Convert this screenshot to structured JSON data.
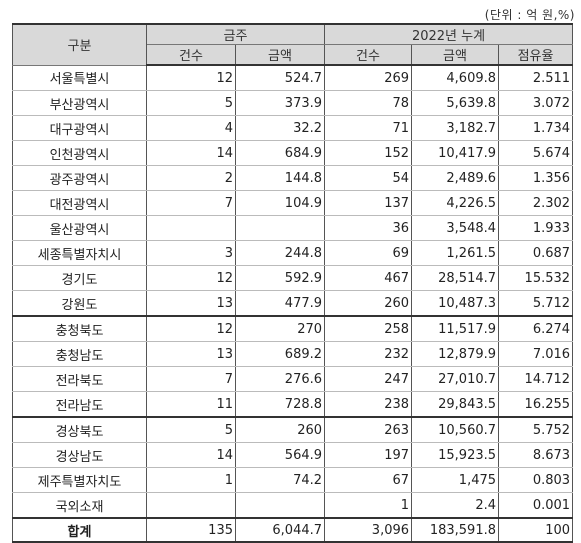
{
  "unit_note": "(단위 : 억 원,%)",
  "header": {
    "category": "구분",
    "group_week": "금주",
    "group_cumulative": "2022년 누계",
    "count": "건수",
    "amount": "금액",
    "share": "점유율"
  },
  "rows": [
    {
      "name": "서울특별시",
      "w_count": "12",
      "w_amount": "524.7",
      "c_count": "269",
      "c_amount": "4,609.8",
      "share": "2.511"
    },
    {
      "name": "부산광역시",
      "w_count": "5",
      "w_amount": "373.9",
      "c_count": "78",
      "c_amount": "5,639.8",
      "share": "3.072"
    },
    {
      "name": "대구광역시",
      "w_count": "4",
      "w_amount": "32.2",
      "c_count": "71",
      "c_amount": "3,182.7",
      "share": "1.734"
    },
    {
      "name": "인천광역시",
      "w_count": "14",
      "w_amount": "684.9",
      "c_count": "152",
      "c_amount": "10,417.9",
      "share": "5.674"
    },
    {
      "name": "광주광역시",
      "w_count": "2",
      "w_amount": "144.8",
      "c_count": "54",
      "c_amount": "2,489.6",
      "share": "1.356"
    },
    {
      "name": "대전광역시",
      "w_count": "7",
      "w_amount": "104.9",
      "c_count": "137",
      "c_amount": "4,226.5",
      "share": "2.302"
    },
    {
      "name": "울산광역시",
      "w_count": "",
      "w_amount": "",
      "c_count": "36",
      "c_amount": "3,548.4",
      "share": "1.933"
    },
    {
      "name": "세종특별자치시",
      "w_count": "3",
      "w_amount": "244.8",
      "c_count": "69",
      "c_amount": "1,261.5",
      "share": "0.687"
    },
    {
      "name": "경기도",
      "w_count": "12",
      "w_amount": "592.9",
      "c_count": "467",
      "c_amount": "28,514.7",
      "share": "15.532"
    },
    {
      "name": "강원도",
      "w_count": "13",
      "w_amount": "477.9",
      "c_count": "260",
      "c_amount": "10,487.3",
      "share": "5.712"
    },
    {
      "name": "충청북도",
      "w_count": "12",
      "w_amount": "270",
      "c_count": "258",
      "c_amount": "11,517.9",
      "share": "6.274"
    },
    {
      "name": "충청남도",
      "w_count": "13",
      "w_amount": "689.2",
      "c_count": "232",
      "c_amount": "12,879.9",
      "share": "7.016"
    },
    {
      "name": "전라북도",
      "w_count": "7",
      "w_amount": "276.6",
      "c_count": "247",
      "c_amount": "27,010.7",
      "share": "14.712"
    },
    {
      "name": "전라남도",
      "w_count": "11",
      "w_amount": "728.8",
      "c_count": "238",
      "c_amount": "29,843.5",
      "share": "16.255"
    },
    {
      "name": "경상북도",
      "w_count": "5",
      "w_amount": "260",
      "c_count": "263",
      "c_amount": "10,560.7",
      "share": "5.752"
    },
    {
      "name": "경상남도",
      "w_count": "14",
      "w_amount": "564.9",
      "c_count": "197",
      "c_amount": "15,923.5",
      "share": "8.673"
    },
    {
      "name": "제주특별자치도",
      "w_count": "1",
      "w_amount": "74.2",
      "c_count": "67",
      "c_amount": "1,475",
      "share": "0.803"
    },
    {
      "name": "국외소재",
      "w_count": "",
      "w_amount": "",
      "c_count": "1",
      "c_amount": "2.4",
      "share": "0.001"
    }
  ],
  "total": {
    "name": "합계",
    "w_count": "135",
    "w_amount": "6,044.7",
    "c_count": "3,096",
    "c_amount": "183,591.8",
    "share": "100"
  }
}
